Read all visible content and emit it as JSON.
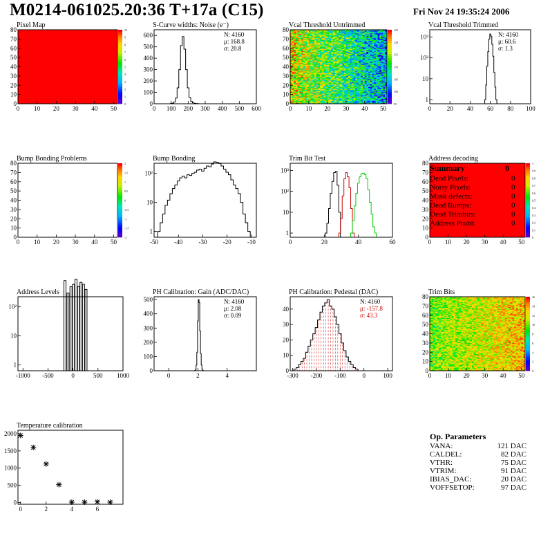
{
  "header": {
    "title": "M0214-061025.20:36 T+17a (C15)",
    "date": "Fri Nov 24 19:35:24 2006"
  },
  "colors": {
    "red": "#ff0000",
    "black": "#000000",
    "green": "#00cc00",
    "hist_red": "#cc0000"
  },
  "chart_data": [
    {
      "id": "pixel-map",
      "type": "heatmap",
      "title": "Pixel Map",
      "xlim": [
        0,
        52
      ],
      "ylim": [
        0,
        80
      ],
      "xticks": [
        "0",
        "10",
        "20",
        "30",
        "40",
        "50"
      ],
      "yticks": [
        "0",
        "10",
        "20",
        "30",
        "40",
        "50",
        "60",
        "70",
        "80"
      ],
      "zticks": [
        "0",
        "1",
        "2",
        "3",
        "4",
        "5",
        "6",
        "7",
        "8",
        "9",
        "10"
      ],
      "fill": "uniform",
      "value": 10
    },
    {
      "id": "scurve-widths",
      "type": "bar",
      "title": "S-Curve widths: Noise (e⁻)",
      "xlim": [
        0,
        600
      ],
      "ylim": [
        0,
        650
      ],
      "xticks": [
        "0",
        "100",
        "200",
        "300",
        "400",
        "500",
        "600"
      ],
      "yticks": [
        "0",
        "100",
        "200",
        "300",
        "400",
        "500",
        "600"
      ],
      "stats": [
        "N: 4160",
        "μ: 168.8",
        "σ: 20.8"
      ],
      "x": [
        100,
        110,
        120,
        130,
        140,
        150,
        160,
        170,
        180,
        190,
        200,
        210,
        220,
        230,
        240,
        250,
        260
      ],
      "values": [
        2,
        5,
        15,
        50,
        140,
        300,
        510,
        590,
        480,
        300,
        140,
        55,
        20,
        8,
        4,
        2,
        1
      ]
    },
    {
      "id": "vcal-untrimmed",
      "type": "heatmap",
      "title": "Vcal Threshold Untrimmed",
      "xlim": [
        0,
        52
      ],
      "ylim": [
        0,
        80
      ],
      "xticks": [
        "0",
        "10",
        "20",
        "30",
        "40",
        "50"
      ],
      "yticks": [
        "0",
        "10",
        "20",
        "30",
        "40",
        "50",
        "60",
        "70",
        "80"
      ],
      "zticks": [
        "95",
        "100",
        "105",
        "110",
        "115",
        "120",
        "125"
      ],
      "fill": "random"
    },
    {
      "id": "vcal-trimmed",
      "type": "bar",
      "title": "Vcal Threshold Trimmed",
      "xlim": [
        0,
        100
      ],
      "logy": true,
      "xticks": [
        "0",
        "20",
        "40",
        "60",
        "80",
        "100"
      ],
      "yticks": [
        "1",
        "10",
        "10²",
        "10³"
      ],
      "stats": [
        "N: 4160",
        "μ: 60.6",
        "σ: 1.3"
      ],
      "x": [
        55,
        56,
        57,
        58,
        59,
        60,
        61,
        62,
        63,
        64,
        65,
        66
      ],
      "values": [
        1,
        5,
        40,
        200,
        800,
        1400,
        1100,
        450,
        120,
        20,
        4,
        1
      ]
    },
    {
      "id": "bump-bonding-problems",
      "type": "heatmap",
      "title": "Bump Bonding Problems",
      "xlim": [
        0,
        52
      ],
      "ylim": [
        0,
        80
      ],
      "xticks": [
        "0",
        "10",
        "20",
        "30",
        "40",
        "50"
      ],
      "yticks": [
        "0",
        "10",
        "20",
        "30",
        "40",
        "50",
        "60",
        "70",
        "80"
      ],
      "zticks": [
        "-2",
        "-1.5",
        "-1",
        "-0.5",
        "0",
        "0.5",
        "1",
        "1.5",
        "2"
      ],
      "fill": "empty"
    },
    {
      "id": "bump-bonding",
      "type": "bar",
      "title": "Bump Bonding",
      "xlim": [
        -50,
        -8
      ],
      "logy": true,
      "xticks": [
        "-50",
        "-40",
        "-30",
        "-20",
        "-10"
      ],
      "yticks": [
        "1",
        "10",
        "10²"
      ],
      "x": [
        -48,
        -47,
        -46,
        -45,
        -44,
        -43,
        -42,
        -41,
        -40,
        -39,
        -38,
        -37,
        -36,
        -35,
        -34,
        -33,
        -32,
        -31,
        -30,
        -29,
        -28,
        -27,
        -26,
        -25,
        -24,
        -23,
        -22,
        -21,
        -20,
        -19,
        -18,
        -17,
        -16,
        -15,
        -14,
        -13,
        -12,
        -11
      ],
      "values": [
        1,
        2,
        4,
        8,
        12,
        20,
        30,
        40,
        55,
        70,
        80,
        70,
        90,
        85,
        100,
        110,
        130,
        140,
        120,
        150,
        180,
        170,
        210,
        250,
        240,
        220,
        180,
        140,
        110,
        90,
        60,
        40,
        30,
        20,
        10,
        4,
        2,
        1
      ]
    },
    {
      "id": "trim-bit-test",
      "type": "bar",
      "title": "Trim Bit Test",
      "xlim": [
        0,
        60
      ],
      "logy": true,
      "xticks": [
        "0",
        "20",
        "40",
        "60"
      ],
      "yticks": [
        "1",
        "10",
        "10²",
        "10³"
      ],
      "series": [
        {
          "name": "bit1",
          "color": "#000000",
          "x": [
            21,
            22,
            23,
            24,
            25,
            26,
            27,
            28,
            29
          ],
          "values": [
            1,
            3,
            15,
            80,
            300,
            800,
            900,
            200,
            10
          ]
        },
        {
          "name": "bit2",
          "color": "#cc0000",
          "x": [
            29,
            30,
            31,
            32,
            33,
            34,
            35,
            36,
            37
          ],
          "values": [
            1,
            5,
            60,
            400,
            800,
            500,
            150,
            15,
            1
          ]
        },
        {
          "name": "bit3",
          "color": "#00cc00",
          "x": [
            36,
            37,
            38,
            39,
            40,
            41,
            42,
            43,
            44,
            45,
            46,
            47,
            48,
            49,
            50
          ],
          "values": [
            1,
            4,
            20,
            80,
            250,
            500,
            700,
            750,
            650,
            400,
            120,
            30,
            8,
            2,
            1
          ]
        }
      ]
    },
    {
      "id": "address-decoding",
      "type": "heatmap",
      "title": "Address decoding",
      "xlim": [
        0,
        52
      ],
      "ylim": [
        0,
        80
      ],
      "xticks": [
        "0",
        "10",
        "20",
        "30",
        "40",
        "50"
      ],
      "yticks": [
        "0",
        "10",
        "20",
        "30",
        "40",
        "50",
        "60",
        "70",
        "80"
      ],
      "zticks": [
        "0",
        "0.1",
        "0.2",
        "0.3",
        "0.4",
        "0.5",
        "0.6",
        "0.7",
        "0.8",
        "0.9",
        "1"
      ],
      "fill": "uniform",
      "value": 1
    },
    {
      "id": "address-levels",
      "type": "bar",
      "title": "Address Levels",
      "xlim": [
        -1100,
        1000
      ],
      "logy": true,
      "xticks": [
        "-1000",
        "-500",
        "0",
        "500",
        "1000"
      ],
      "yticks": [
        "1",
        "10",
        "10²"
      ],
      "x": [
        -160,
        -100,
        -40,
        10,
        60,
        110,
        160,
        210,
        260
      ],
      "values": [
        800,
        300,
        500,
        600,
        900,
        500,
        700,
        600,
        400
      ]
    },
    {
      "id": "ph-gain",
      "type": "bar",
      "title": "PH Calibration: Gain (ADC/DAC)",
      "xlim": [
        -1,
        6
      ],
      "ylim": [
        0,
        520
      ],
      "xticks": [
        "0",
        "2",
        "4"
      ],
      "yticks": [
        "0",
        "100",
        "200",
        "300",
        "400",
        "500"
      ],
      "stats": [
        "N: 4160",
        "μ: 2.08",
        "σ: 0.09"
      ],
      "x": [
        1.8,
        1.85,
        1.9,
        1.95,
        2.0,
        2.05,
        2.1,
        2.15,
        2.2,
        2.25,
        2.3,
        2.35
      ],
      "values": [
        2,
        10,
        40,
        130,
        350,
        500,
        480,
        280,
        120,
        40,
        10,
        2
      ]
    },
    {
      "id": "ph-pedestal",
      "type": "bar",
      "title": "PH Calibration: Pedestal (DAC)",
      "xlim": [
        -310,
        120
      ],
      "ylim": [
        0,
        48
      ],
      "xticks": [
        "-300",
        "-200",
        "-100",
        "0",
        "100"
      ],
      "yticks": [
        "0",
        "10",
        "20",
        "30",
        "40"
      ],
      "stats": [
        "N: 4160",
        "μ: -157.8",
        "σ: 43.3"
      ],
      "x": [
        -290,
        -280,
        -270,
        -260,
        -250,
        -240,
        -230,
        -220,
        -210,
        -200,
        -190,
        -180,
        -170,
        -160,
        -150,
        -140,
        -130,
        -120,
        -110,
        -100,
        -90,
        -80,
        -70,
        -60,
        -50,
        -40,
        -30
      ],
      "values": [
        1,
        2,
        4,
        6,
        8,
        12,
        16,
        20,
        24,
        28,
        33,
        38,
        42,
        44,
        46,
        42,
        40,
        35,
        30,
        24,
        18,
        13,
        9,
        6,
        4,
        2,
        1
      ]
    },
    {
      "id": "trim-bits",
      "type": "heatmap",
      "title": "Trim Bits",
      "xlim": [
        0,
        52
      ],
      "ylim": [
        0,
        80
      ],
      "xticks": [
        "0",
        "10",
        "20",
        "30",
        "40",
        "50"
      ],
      "yticks": [
        "0",
        "10",
        "20",
        "30",
        "40",
        "50",
        "60",
        "70",
        "80"
      ],
      "zticks": [
        "0",
        "2",
        "4",
        "6",
        "8",
        "10",
        "12",
        "14",
        "16"
      ],
      "fill": "random-warm"
    },
    {
      "id": "temperature-calibration",
      "type": "scatter",
      "title": "Temperature calibration",
      "xlim": [
        -0.2,
        8
      ],
      "ylim": [
        -50,
        2100
      ],
      "xticks": [
        "0",
        "2",
        "4",
        "6"
      ],
      "yticks": [
        "0",
        "500",
        "1000",
        "1500",
        "2000"
      ],
      "x": [
        0,
        1,
        2,
        3,
        4,
        5,
        6,
        7
      ],
      "values": [
        1950,
        1600,
        1120,
        520,
        10,
        10,
        20,
        10
      ]
    }
  ],
  "summary": {
    "heading": "Summary",
    "total": "0",
    "rows": [
      {
        "label": "Dead Pixels:",
        "value": "0"
      },
      {
        "label": "Noisy Pixels:",
        "value": "0"
      },
      {
        "label": "Mask defects:",
        "value": "0"
      },
      {
        "label": "Dead Bumps:",
        "value": "0"
      },
      {
        "label": "Dead Trimbits:",
        "value": "0"
      },
      {
        "label": "Address Probl:",
        "value": "0"
      }
    ]
  },
  "op_params": {
    "heading": "Op. Parameters",
    "rows": [
      {
        "label": "VANA:",
        "value": "121 DAC"
      },
      {
        "label": "CALDEL:",
        "value": "82 DAC"
      },
      {
        "label": "VTHR:",
        "value": "75 DAC"
      },
      {
        "label": "VTRIM:",
        "value": "91 DAC"
      },
      {
        "label": "IBIAS_DAC:",
        "value": "20 DAC"
      },
      {
        "label": "VOFFSETOP:",
        "value": "97 DAC"
      }
    ]
  }
}
